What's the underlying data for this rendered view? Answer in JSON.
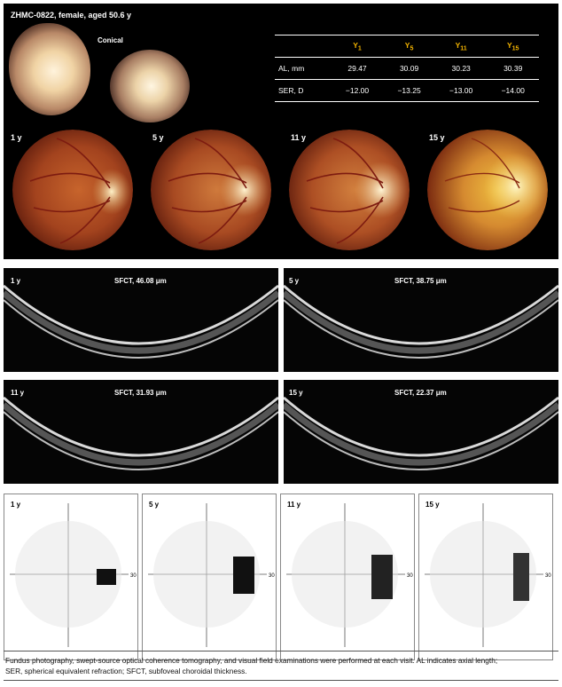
{
  "patient_label": "ZHMC-0822, female, aged 50.6 y",
  "disc_shape_label": "Conical",
  "table": {
    "header": [
      "",
      "Y1",
      "Y5",
      "Y11",
      "Y15"
    ],
    "header_display": [
      {
        "base": "Y",
        "sub": "1"
      },
      {
        "base": "Y",
        "sub": "5"
      },
      {
        "base": "Y",
        "sub": "11"
      },
      {
        "base": "Y",
        "sub": "15"
      }
    ],
    "rows": [
      {
        "label": "AL, mm",
        "values": [
          "29.47",
          "30.09",
          "30.23",
          "30.39"
        ]
      },
      {
        "label": "SER, D",
        "values": [
          "−12.00",
          "−13.25",
          "−13.00",
          "−14.00"
        ]
      }
    ]
  },
  "fundus_labels": [
    "1 y",
    "5 y",
    "11 y",
    "15 y"
  ],
  "oct": [
    {
      "label": "1 y",
      "sfct": "SFCT, 46.08 μm"
    },
    {
      "label": "5 y",
      "sfct": "SFCT, 38.75 μm"
    },
    {
      "label": "11 y",
      "sfct": "SFCT, 31.93 μm"
    },
    {
      "label": "15 y",
      "sfct": "SFCT, 22.37 μm"
    }
  ],
  "visual_fields": [
    {
      "label": "1 y",
      "scale": "30"
    },
    {
      "label": "5 y",
      "scale": "30"
    },
    {
      "label": "11 y",
      "scale": "30"
    },
    {
      "label": "15 y",
      "scale": "30"
    }
  ],
  "caption_line1": "Fundus photography, swept-source optical coherence tomography, and visual field examinations were performed at each visit. AL indicates axial length;",
  "caption_line2": "SER, spherical equivalent refraction; SFCT, subfoveal choroidal thickness.",
  "colors": {
    "header_accent": "#f4b400",
    "panel_bg": "#000000"
  }
}
